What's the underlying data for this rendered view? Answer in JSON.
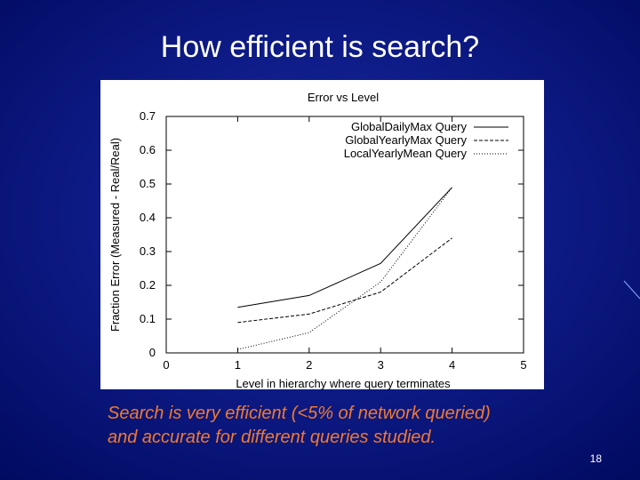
{
  "slide": {
    "title": "How efficient is search?",
    "caption": [
      "Search is very efficient (<5% of network queried)",
      "and accurate for different queries studied."
    ],
    "page_number": "18"
  },
  "chart_data": {
    "type": "line",
    "title": "Error vs Level",
    "x_label": "Level in hierarchy where query terminates",
    "y_label": "Fraction Error (Measured - Real/Real)",
    "x": [
      1,
      2,
      3,
      4
    ],
    "series": [
      {
        "name": "GlobalDailyMax Query",
        "color": "#000000",
        "dash": "solid",
        "values": [
          0.135,
          0.17,
          0.265,
          0.49
        ]
      },
      {
        "name": "GlobalYearlyMax Query",
        "color": "#000000",
        "dash": "dashed",
        "values": [
          0.09,
          0.115,
          0.18,
          0.34
        ]
      },
      {
        "name": "LocalYearlyMean Query",
        "color": "#000000",
        "dash": "dotted",
        "values": [
          0.01,
          0.06,
          0.21,
          0.49
        ]
      }
    ],
    "xlim": [
      0,
      5
    ],
    "xticks": [
      0,
      1,
      2,
      3,
      4,
      5
    ],
    "ylim": [
      0,
      0.7
    ],
    "yticks": [
      0,
      0.1,
      0.2,
      0.3,
      0.4,
      0.5,
      0.6,
      0.7
    ],
    "legend": "top-right",
    "grid": false
  }
}
